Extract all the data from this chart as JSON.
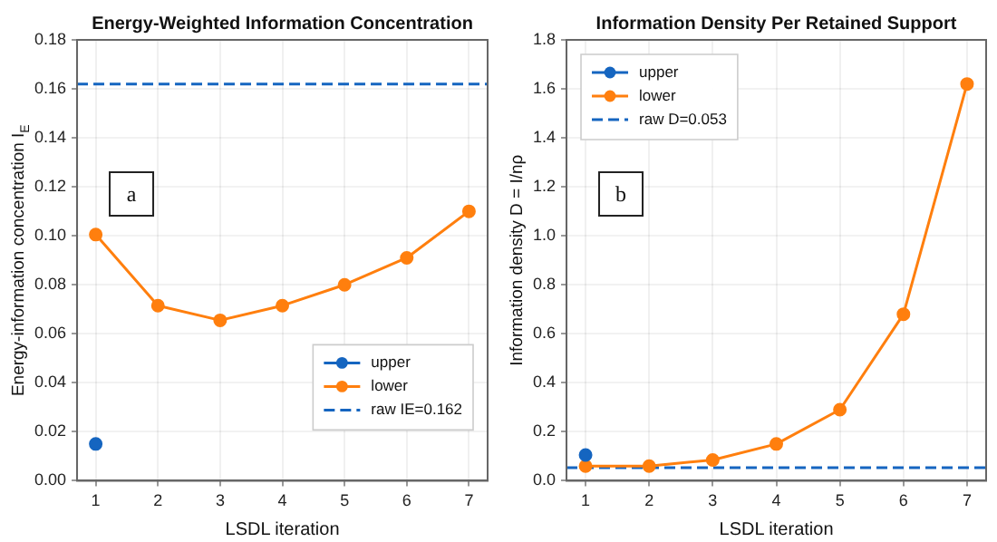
{
  "chart_data": [
    {
      "type": "line",
      "title": "Energy-Weighted Information Concentration",
      "xlabel": "LSDL iteration",
      "ylabel": "Energy-information concentration I$_{E}$",
      "annotations": [
        "a"
      ],
      "series": [
        {
          "name": "upper",
          "color": "#1565c0",
          "x": [
            1
          ],
          "values": [
            0.015
          ]
        },
        {
          "name": "lower",
          "color": "#ff7f0e",
          "x": [
            1,
            2,
            3,
            4,
            5,
            6,
            7
          ],
          "values": [
            0.1005,
            0.0715,
            0.0655,
            0.0715,
            0.08,
            0.091,
            0.11
          ]
        }
      ],
      "ref_lines": [
        {
          "axis": "y",
          "value": 0.162,
          "label": "raw IE=0.162",
          "color": "#1565c0",
          "line_style": "dashed"
        }
      ],
      "xlim": [
        0.7,
        7.3
      ],
      "xticks": [
        1,
        2,
        3,
        4,
        5,
        6,
        7
      ],
      "ylim": [
        0,
        0.18
      ],
      "yticks": [
        {
          "value": 0,
          "label": "0.00"
        },
        0.02,
        0.04,
        0.06,
        0.08,
        {
          "value": 0.1,
          "label": "0.10"
        },
        0.12,
        0.14,
        0.16,
        0.18
      ],
      "grid": true,
      "legend": "bottom right",
      "marker": "circle",
      "line_style": "solid"
    },
    {
      "type": "line",
      "title": "Information Density Per Retained Support",
      "xlabel": "LSDL iteration",
      "ylabel": "Information density D = I/nρ",
      "annotations": [
        "b"
      ],
      "series": [
        {
          "name": "upper",
          "color": "#1565c0",
          "x": [
            1
          ],
          "values": [
            0.105
          ]
        },
        {
          "name": "lower",
          "color": "#ff7f0e",
          "x": [
            1,
            2,
            3,
            4,
            5,
            6,
            7
          ],
          "values": [
            0.06,
            0.06,
            0.085,
            0.15,
            0.29,
            0.68,
            1.62
          ]
        }
      ],
      "ref_lines": [
        {
          "axis": "y",
          "value": 0.053,
          "label": "raw D=0.053",
          "color": "#1565c0",
          "line_style": "dashed"
        }
      ],
      "xlim": [
        0.7,
        7.3
      ],
      "xticks": [
        1,
        2,
        3,
        4,
        5,
        6,
        7
      ],
      "ylim": [
        0,
        1.8
      ],
      "yticks": [
        {
          "value": 0,
          "label": "0.0"
        },
        0.2,
        0.4,
        0.6,
        0.8,
        {
          "value": 1,
          "label": "1.0"
        },
        1.2,
        1.4,
        1.6,
        1.8
      ],
      "grid": true,
      "legend": "top left",
      "marker": "circle",
      "line_style": "solid"
    }
  ]
}
